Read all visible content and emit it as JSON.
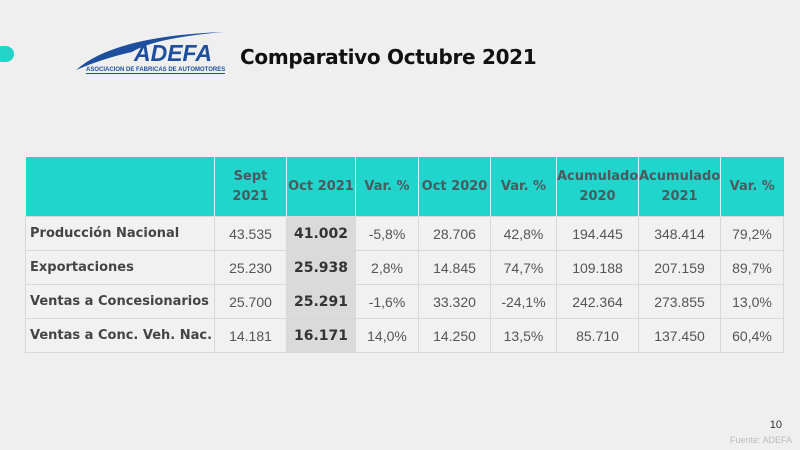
{
  "logo": {
    "word": "ADEFA",
    "subtitle": "ASOCIACION DE FABRICAS DE AUTOMOTORES"
  },
  "title": "Comparativo Octubre 2021",
  "table": {
    "headers": [
      "",
      "Sept 2021",
      "Oct 2021",
      "Var. %",
      "Oct 2020",
      "Var. %",
      "Acumulado 2020",
      "Acumulado 2021",
      "Var. %"
    ],
    "rows": [
      [
        "Producción Nacional",
        "43.535",
        "41.002",
        "-5,8%",
        "28.706",
        "42,8%",
        "194.445",
        "348.414",
        "79,2%"
      ],
      [
        "Exportaciones",
        "25.230",
        "25.938",
        "2,8%",
        "14.845",
        "74,7%",
        "109.188",
        "207.159",
        "89,7%"
      ],
      [
        "Ventas a Concesionarios",
        "25.700",
        "25.291",
        "-1,6%",
        "33.320",
        "-24,1%",
        "242.364",
        "273.855",
        "13,0%"
      ],
      [
        "Ventas a Conc. Veh. Nac.",
        "14.181",
        "16.171",
        "14,0%",
        "14.250",
        "13,5%",
        "85.710",
        "137.450",
        "60,4%"
      ]
    ]
  },
  "footer": {
    "page_number": "10",
    "source": "Fuente: ADEFA"
  },
  "colors": {
    "header_bg": "#1fd5cc",
    "highlight_col": "#dadada",
    "logo_blue": "#1d4f9e"
  }
}
